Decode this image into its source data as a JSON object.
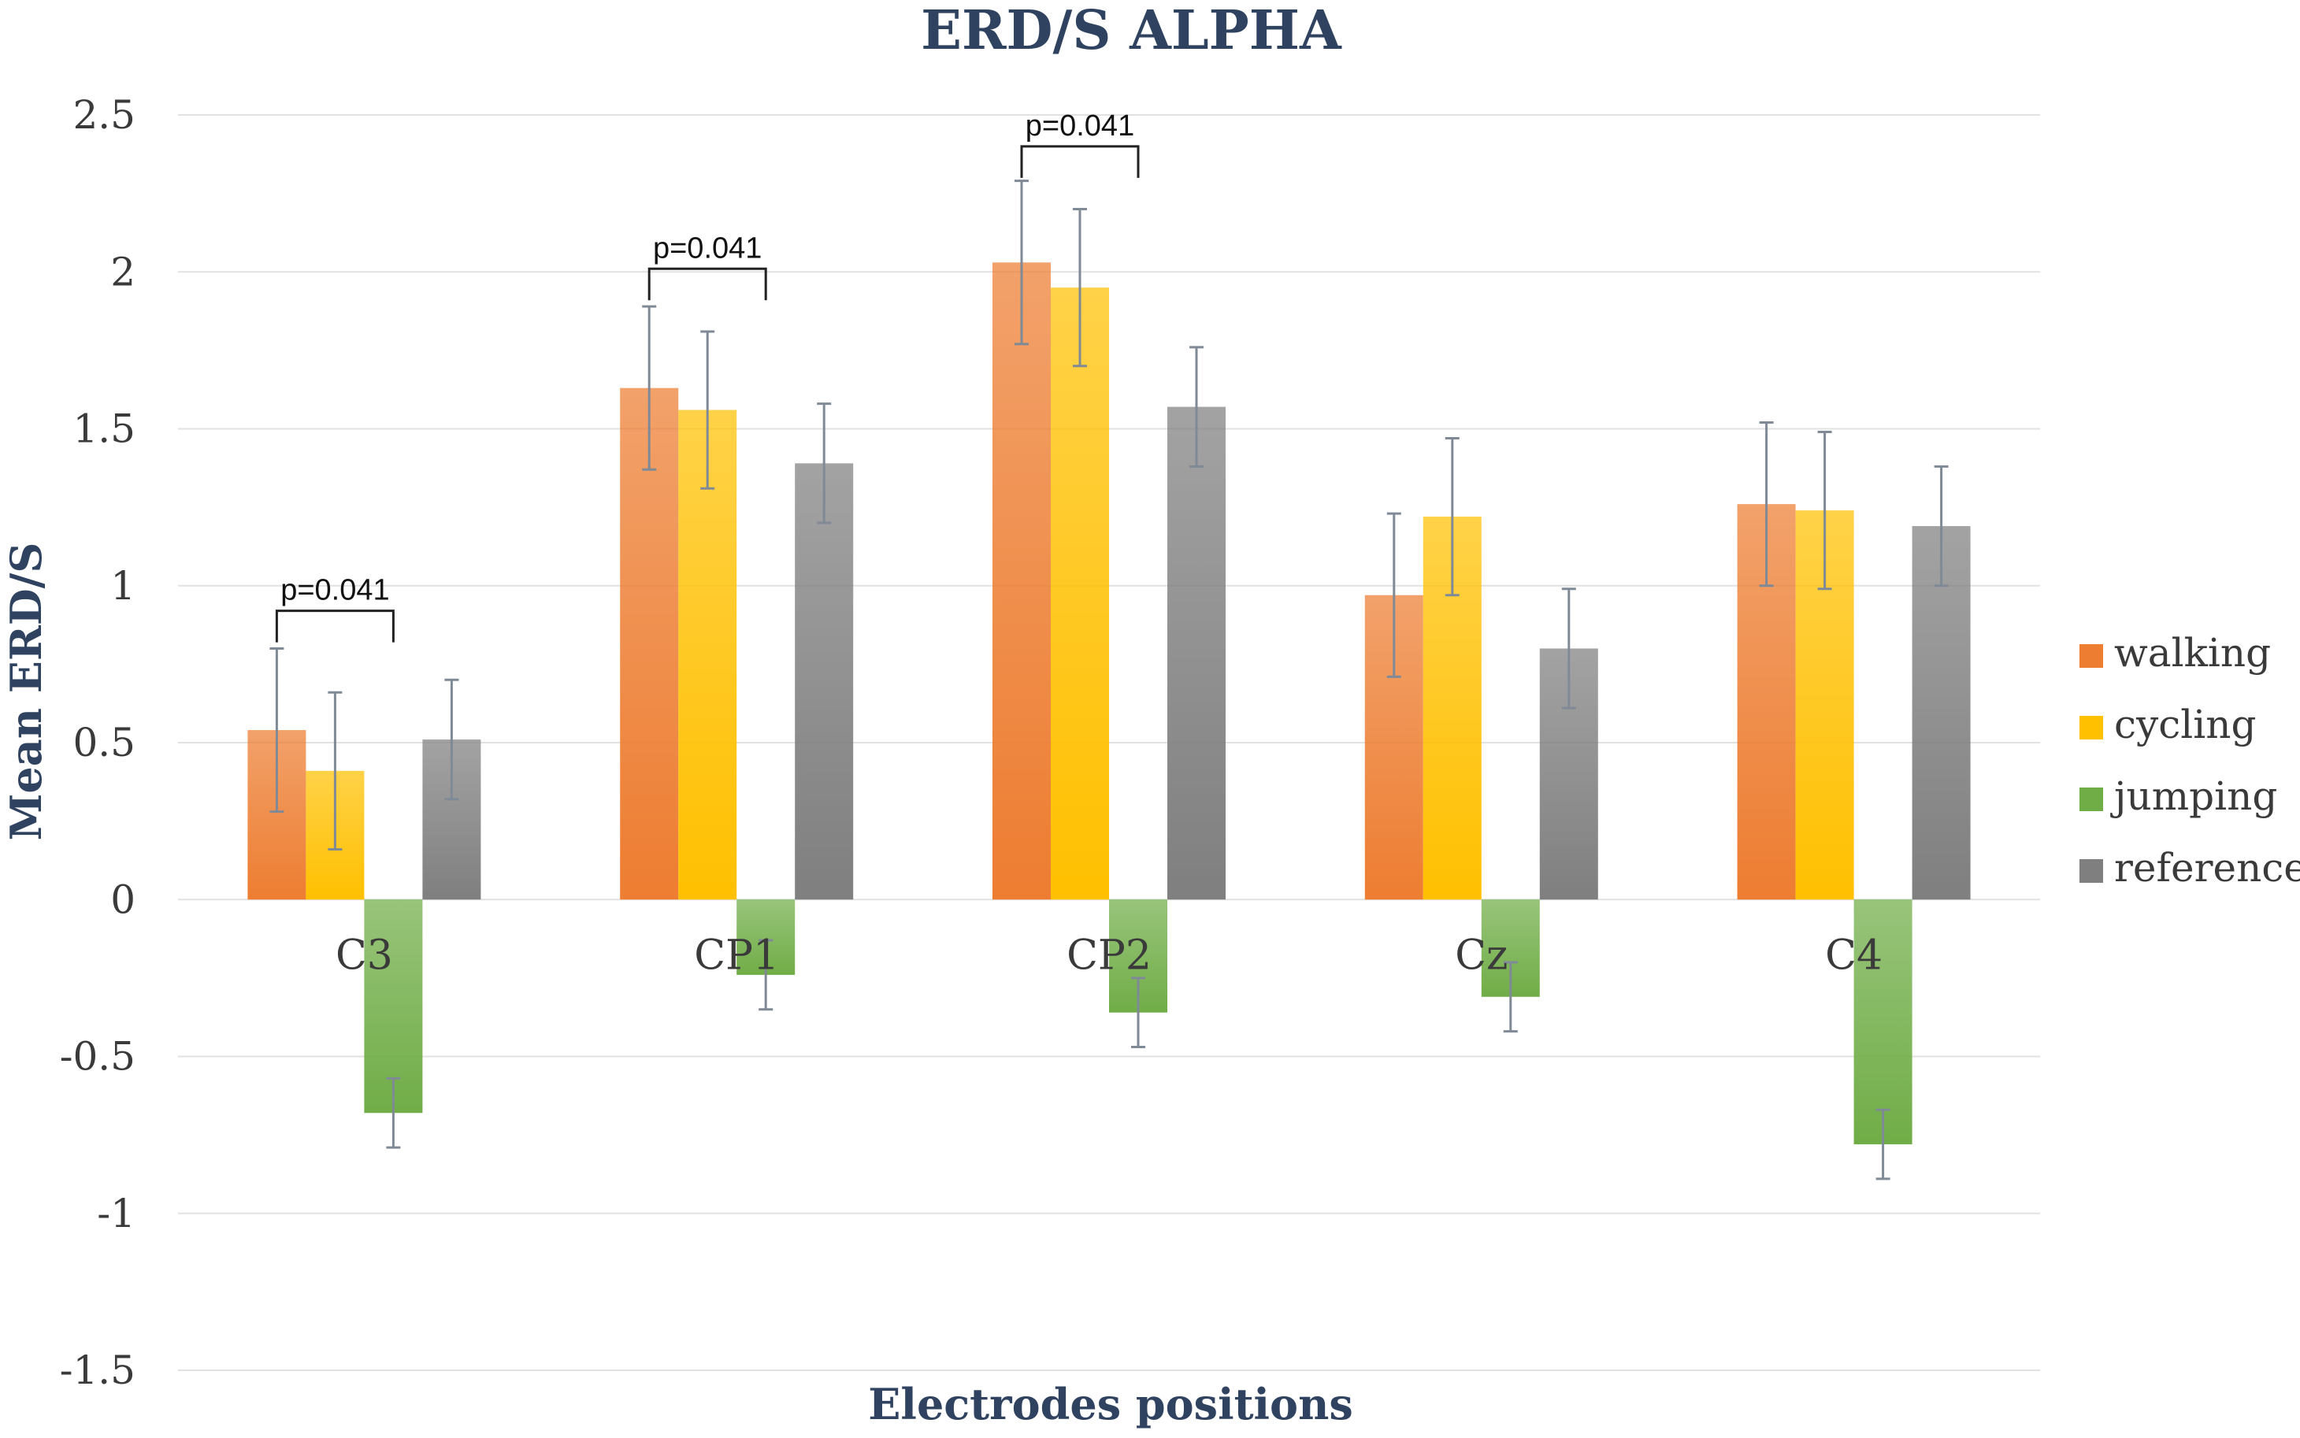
{
  "chart_data": {
    "type": "bar",
    "title": "ERD/S ALPHA",
    "xlabel": "Electrodes positions",
    "ylabel": "Mean ERD/S",
    "ylim": [
      -1.5,
      2.5
    ],
    "yticks": [
      2.5,
      2,
      1.5,
      1,
      0.5,
      0,
      -0.5,
      -1,
      -1.5
    ],
    "ytick_labels": [
      "2.5",
      "2",
      "1.5",
      "1",
      "0.5",
      "0",
      "-0.5",
      "-1",
      "-1.5"
    ],
    "categories": [
      "C3",
      "CP1",
      "CP2",
      "Cz",
      "C4"
    ],
    "grid": true,
    "legend_position": "right",
    "series": [
      {
        "name": "walking",
        "color": "#ed7d31",
        "values": [
          0.54,
          1.63,
          2.03,
          0.97,
          1.26
        ],
        "error": [
          0.26,
          0.26,
          0.26,
          0.26,
          0.26
        ]
      },
      {
        "name": "cycling",
        "color": "#ffc000",
        "values": [
          0.41,
          1.56,
          1.95,
          1.22,
          1.24
        ],
        "error": [
          0.25,
          0.25,
          0.25,
          0.25,
          0.25
        ]
      },
      {
        "name": "jumping",
        "color": "#70ad47",
        "values": [
          -0.68,
          -0.24,
          -0.36,
          -0.31,
          -0.78
        ],
        "error": [
          0.11,
          0.11,
          0.11,
          0.11,
          0.11
        ]
      },
      {
        "name": "reference",
        "color": "#7f7f7f",
        "values": [
          0.51,
          1.39,
          1.57,
          0.8,
          1.19
        ],
        "error": [
          0.19,
          0.19,
          0.19,
          0.19,
          0.19
        ]
      }
    ],
    "annotations": [
      {
        "text": "p=0.041",
        "category": "C3",
        "from_series": 0,
        "to_series": 2,
        "y": 0.92
      },
      {
        "text": "p=0.041",
        "category": "CP1",
        "from_series": 0,
        "to_series": 2,
        "y": 2.01
      },
      {
        "text": "p=0.041",
        "category": "CP2",
        "from_series": 0,
        "to_series": 2,
        "y": 2.4
      }
    ]
  }
}
